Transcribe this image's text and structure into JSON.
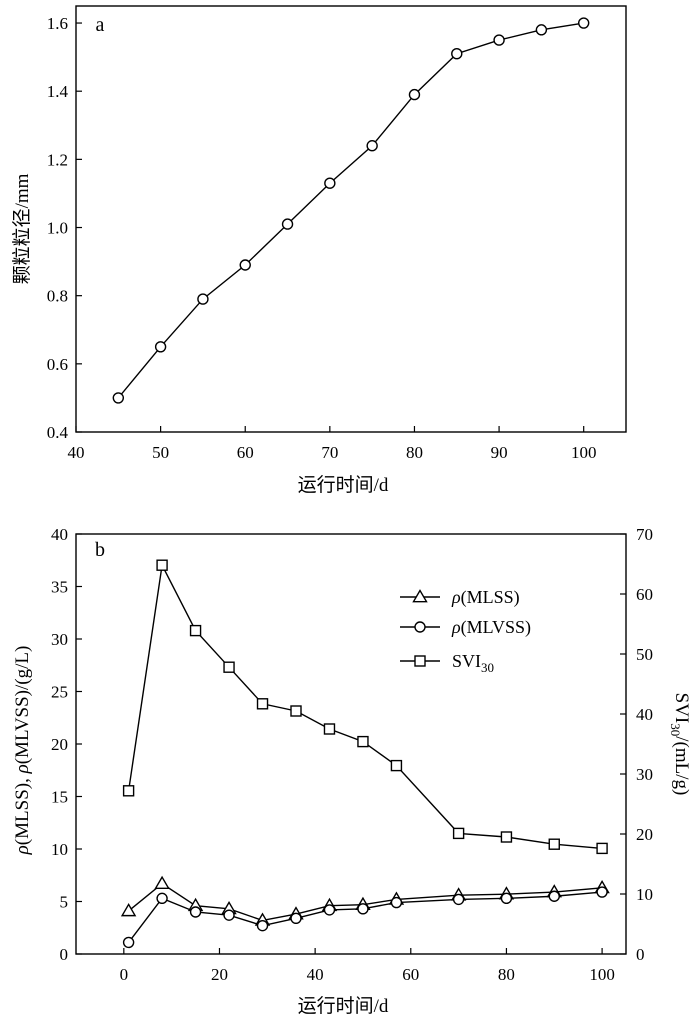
{
  "chart_data": [
    {
      "type": "line",
      "panel_label": "a",
      "xlabel": "运行时间/d",
      "ylabel": "颗粒粒径/mm",
      "xlim": [
        40,
        105
      ],
      "ylim": [
        0.4,
        1.65
      ],
      "xticks": [
        40,
        50,
        60,
        70,
        80,
        90,
        100
      ],
      "yticks": [
        0.4,
        0.6,
        0.8,
        1.0,
        1.2,
        1.4,
        1.6
      ],
      "ytick_labels": [
        "0.4",
        "0.6",
        "0.8",
        "1.0",
        "1.2",
        "1.4",
        "1.6"
      ],
      "grid": false,
      "series": [
        {
          "marker": "circle",
          "x": [
            45,
            50,
            55,
            60,
            65,
            70,
            75,
            80,
            85,
            90,
            95,
            100
          ],
          "y": [
            0.5,
            0.65,
            0.79,
            0.89,
            1.01,
            1.13,
            1.24,
            1.39,
            1.51,
            1.55,
            1.58,
            1.6
          ]
        }
      ]
    },
    {
      "type": "line",
      "panel_label": "b",
      "xlabel": "运行时间/d",
      "ylabel": "ρ(MLSS), ρ(MLVSS)/(g/L)",
      "y2label": "SVI30/(mL/g)",
      "xlim": [
        -10,
        105
      ],
      "ylim": [
        0,
        40
      ],
      "y2lim": [
        0,
        70
      ],
      "xticks": [
        0,
        20,
        40,
        60,
        80,
        100
      ],
      "yticks": [
        0,
        5,
        10,
        15,
        20,
        25,
        30,
        35,
        40
      ],
      "y2ticks": [
        0,
        10,
        20,
        30,
        40,
        50,
        60,
        70
      ],
      "legend_position": "upper-right",
      "grid": false,
      "series": [
        {
          "name": "ρ(MLSS)",
          "marker": "triangle",
          "axis": "left",
          "x": [
            1,
            8,
            15,
            22,
            29,
            36,
            43,
            50,
            57,
            70,
            80,
            90,
            100
          ],
          "y": [
            4.1,
            6.7,
            4.6,
            4.3,
            3.2,
            3.8,
            4.6,
            4.7,
            5.2,
            5.6,
            5.7,
            5.9,
            6.3
          ]
        },
        {
          "name": "ρ(MLVSS)",
          "marker": "circle",
          "axis": "left",
          "x": [
            1,
            8,
            15,
            22,
            29,
            36,
            43,
            50,
            57,
            70,
            80,
            90,
            100
          ],
          "y": [
            1.1,
            5.3,
            4.0,
            3.7,
            2.7,
            3.4,
            4.2,
            4.3,
            4.9,
            5.2,
            5.3,
            5.5,
            5.9
          ]
        },
        {
          "name": "SVI30",
          "marker": "square",
          "axis": "right",
          "x": [
            1,
            8,
            15,
            22,
            29,
            36,
            43,
            50,
            57,
            70,
            80,
            90,
            100
          ],
          "y": [
            27.2,
            64.8,
            53.9,
            47.8,
            41.7,
            40.5,
            37.5,
            35.4,
            31.4,
            20.1,
            19.5,
            18.3,
            17.6
          ]
        }
      ]
    }
  ]
}
